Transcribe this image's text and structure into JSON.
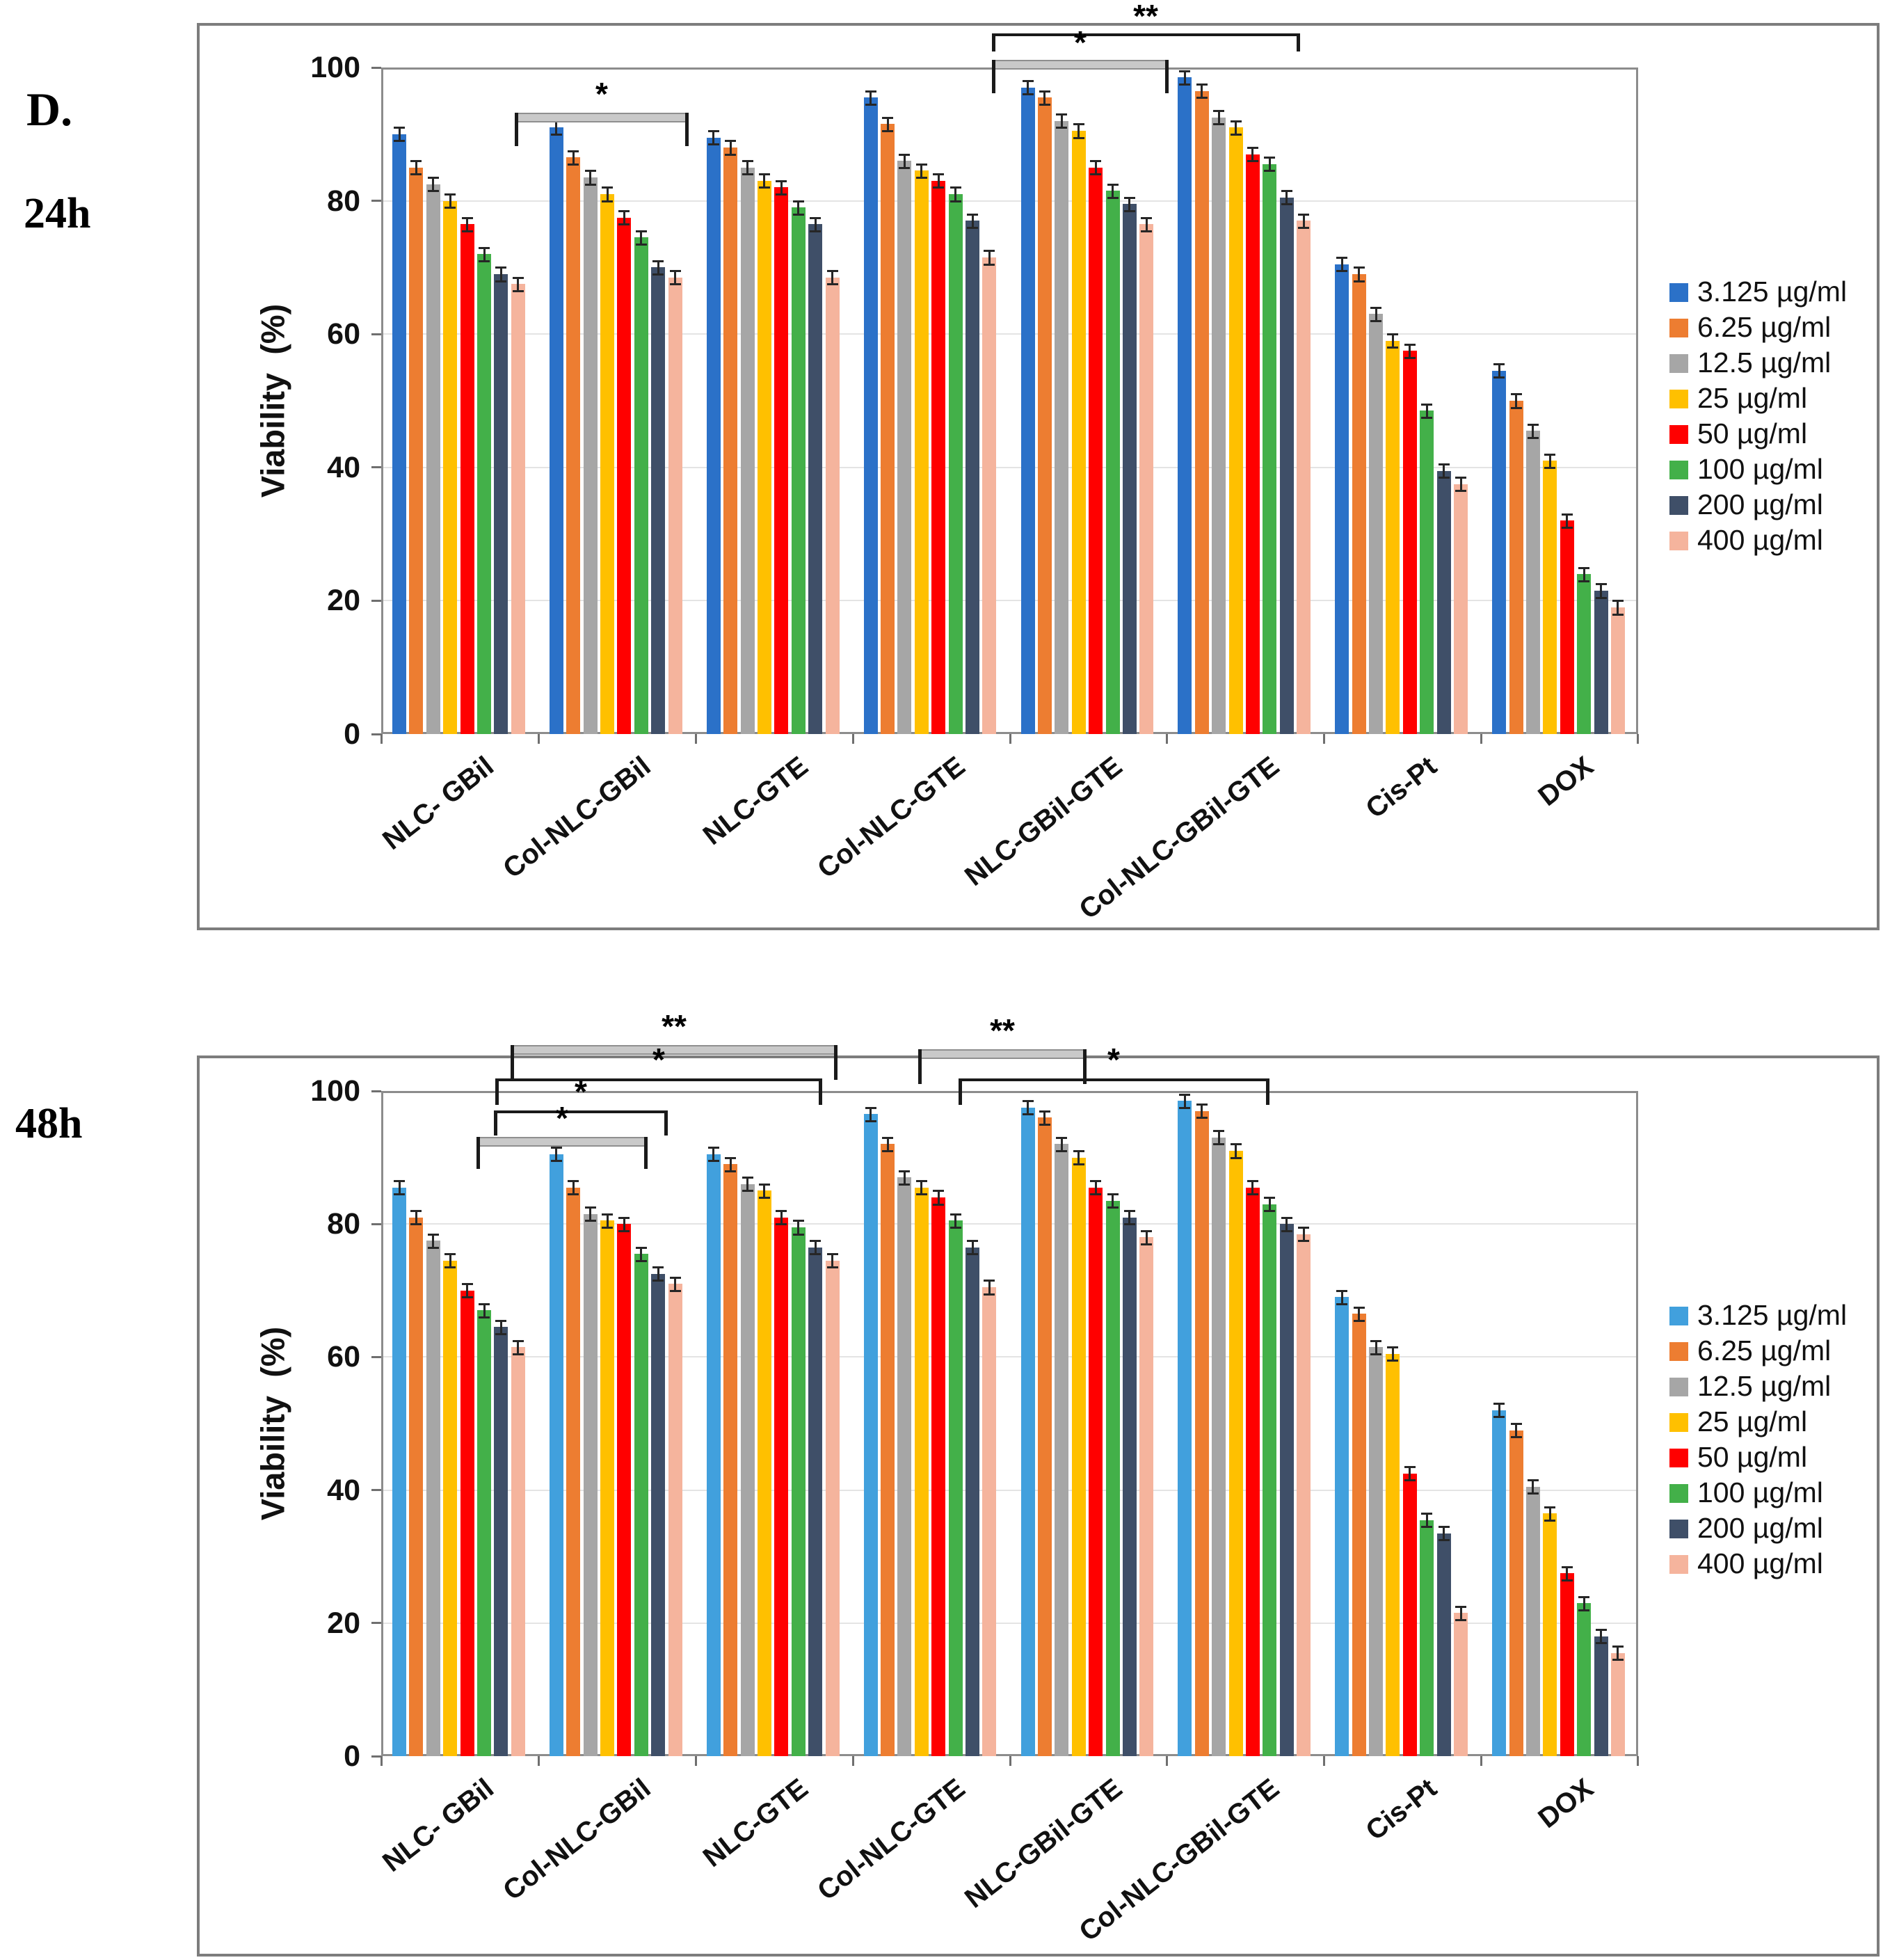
{
  "panel_label": "D.",
  "chart_data": [
    {
      "type": "bar",
      "title": "24h",
      "ylabel": "Viability  (%)",
      "ylim": [
        0,
        100
      ],
      "yticks": [
        0,
        20,
        40,
        60,
        80,
        100
      ],
      "grid": true,
      "legend_position": "right",
      "error_bar": 1.0,
      "categories": [
        "NLC- GBil",
        "Col-NLC-GBil",
        "NLC-GTE",
        "Col-NLC-GTE",
        "NLC-GBil-GTE",
        "Col-NLC-GBil-GTE",
        "Cis-Pt",
        "DOX"
      ],
      "series": [
        {
          "name": "3.125 µg/ml",
          "color": "#2b71c8",
          "values": [
            90,
            91,
            89.5,
            95.5,
            97,
            98.5,
            70.5,
            54.5
          ]
        },
        {
          "name": "6.25 µg/ml",
          "color": "#ed7d31",
          "values": [
            85,
            86.5,
            88,
            91.5,
            95.5,
            96.5,
            69,
            50
          ]
        },
        {
          "name": "12.5 µg/ml",
          "color": "#a6a6a6",
          "values": [
            82.5,
            83.5,
            85,
            86,
            92,
            92.5,
            63,
            45.5
          ]
        },
        {
          "name": "25 µg/ml",
          "color": "#ffc000",
          "values": [
            80,
            81,
            83,
            84.5,
            90.5,
            91,
            59,
            41
          ]
        },
        {
          "name": "50 µg/ml",
          "color": "#ff0000",
          "values": [
            76.5,
            77.5,
            82,
            83,
            85,
            87,
            57.5,
            32
          ]
        },
        {
          "name": "100 µg/ml",
          "color": "#43b049",
          "values": [
            72,
            74.5,
            79,
            81,
            81.5,
            85.5,
            48.5,
            24
          ]
        },
        {
          "name": "200 µg/ml",
          "color": "#3f4f68",
          "values": [
            69,
            70,
            76.5,
            77,
            79.5,
            80.5,
            39.5,
            21.5
          ]
        },
        {
          "name": "400 µg/ml",
          "color": "#f5b49d",
          "values": [
            67.5,
            68.5,
            68.5,
            71.5,
            76.5,
            77,
            37.5,
            19
          ]
        }
      ],
      "significance": [
        {
          "label": "*",
          "style": "thick",
          "x1": 740,
          "x2": 990,
          "y": 162,
          "tick": 34,
          "labelX": 865,
          "labelY": 112
        },
        {
          "label": "**",
          "style": "thin",
          "x1": 1426,
          "x2": 1869,
          "y": 48,
          "tick": 26,
          "labelX": 1647,
          "labelY": 0
        },
        {
          "label": "*",
          "style": "thick",
          "x1": 1426,
          "x2": 1680,
          "y": 86,
          "tick": 34,
          "labelX": 1553,
          "labelY": 38
        }
      ]
    },
    {
      "type": "bar",
      "title": "48h",
      "ylabel": "Viability  (%)",
      "ylim": [
        0,
        100
      ],
      "yticks": [
        0,
        20,
        40,
        60,
        80,
        100
      ],
      "grid": true,
      "legend_position": "right",
      "error_bar": 1.0,
      "categories": [
        "NLC- GBil",
        "Col-NLC-GBil",
        "NLC-GTE",
        "Col-NLC-GTE",
        "NLC-GBil-GTE",
        "Col-NLC-GBil-GTE",
        "Cis-Pt",
        "DOX"
      ],
      "series": [
        {
          "name": "3.125 µg/ml",
          "color": "#41a0dd",
          "values": [
            85.5,
            90.5,
            90.5,
            96.5,
            97.5,
            98.5,
            69,
            52
          ]
        },
        {
          "name": "6.25 µg/ml",
          "color": "#ed7d31",
          "values": [
            81,
            85.5,
            89,
            92,
            96,
            97,
            66.5,
            49
          ]
        },
        {
          "name": "12.5 µg/ml",
          "color": "#a6a6a6",
          "values": [
            77.5,
            81.5,
            86,
            87,
            92,
            93,
            61.5,
            40.5
          ]
        },
        {
          "name": "25 µg/ml",
          "color": "#ffc000",
          "values": [
            74.5,
            80.5,
            85,
            85.5,
            90,
            91,
            60.5,
            36.5
          ]
        },
        {
          "name": "50 µg/ml",
          "color": "#ff0000",
          "values": [
            70,
            80,
            81,
            84,
            85.5,
            85.5,
            42.5,
            27.5
          ]
        },
        {
          "name": "100 µg/ml",
          "color": "#43b049",
          "values": [
            67,
            75.5,
            79.5,
            80.5,
            83.5,
            83,
            35.5,
            23
          ]
        },
        {
          "name": "200 µg/ml",
          "color": "#3f4f68",
          "values": [
            64.5,
            72.5,
            76.5,
            76.5,
            81,
            80,
            33.5,
            18
          ]
        },
        {
          "name": "400 µg/ml",
          "color": "#f5b49d",
          "values": [
            61.5,
            71,
            74.5,
            70.5,
            78,
            78.5,
            21.5,
            15.5
          ]
        }
      ],
      "significance": [
        {
          "label": "**",
          "style": "thick",
          "x1": 734,
          "x2": 1204,
          "y": 1502,
          "tick": 36,
          "labelX": 969,
          "labelY": 1452
        },
        {
          "label": "**",
          "style": "thick",
          "x1": 1320,
          "x2": 1562,
          "y": 1508,
          "tick": 36,
          "labelX": 1441,
          "labelY": 1458
        },
        {
          "label": "*",
          "style": "thin",
          "x1": 712,
          "x2": 1182,
          "y": 1550,
          "tick": 38,
          "labelX": 947,
          "labelY": 1500
        },
        {
          "label": "*",
          "style": "thin",
          "x1": 1378,
          "x2": 1825,
          "y": 1550,
          "tick": 38,
          "labelX": 1601,
          "labelY": 1500
        },
        {
          "label": "*",
          "style": "thin",
          "x1": 710,
          "x2": 960,
          "y": 1596,
          "tick": 36,
          "labelX": 835,
          "labelY": 1546
        },
        {
          "label": "*",
          "style": "thick",
          "x1": 685,
          "x2": 931,
          "y": 1634,
          "tick": 32,
          "labelX": 808,
          "labelY": 1584
        }
      ]
    }
  ]
}
